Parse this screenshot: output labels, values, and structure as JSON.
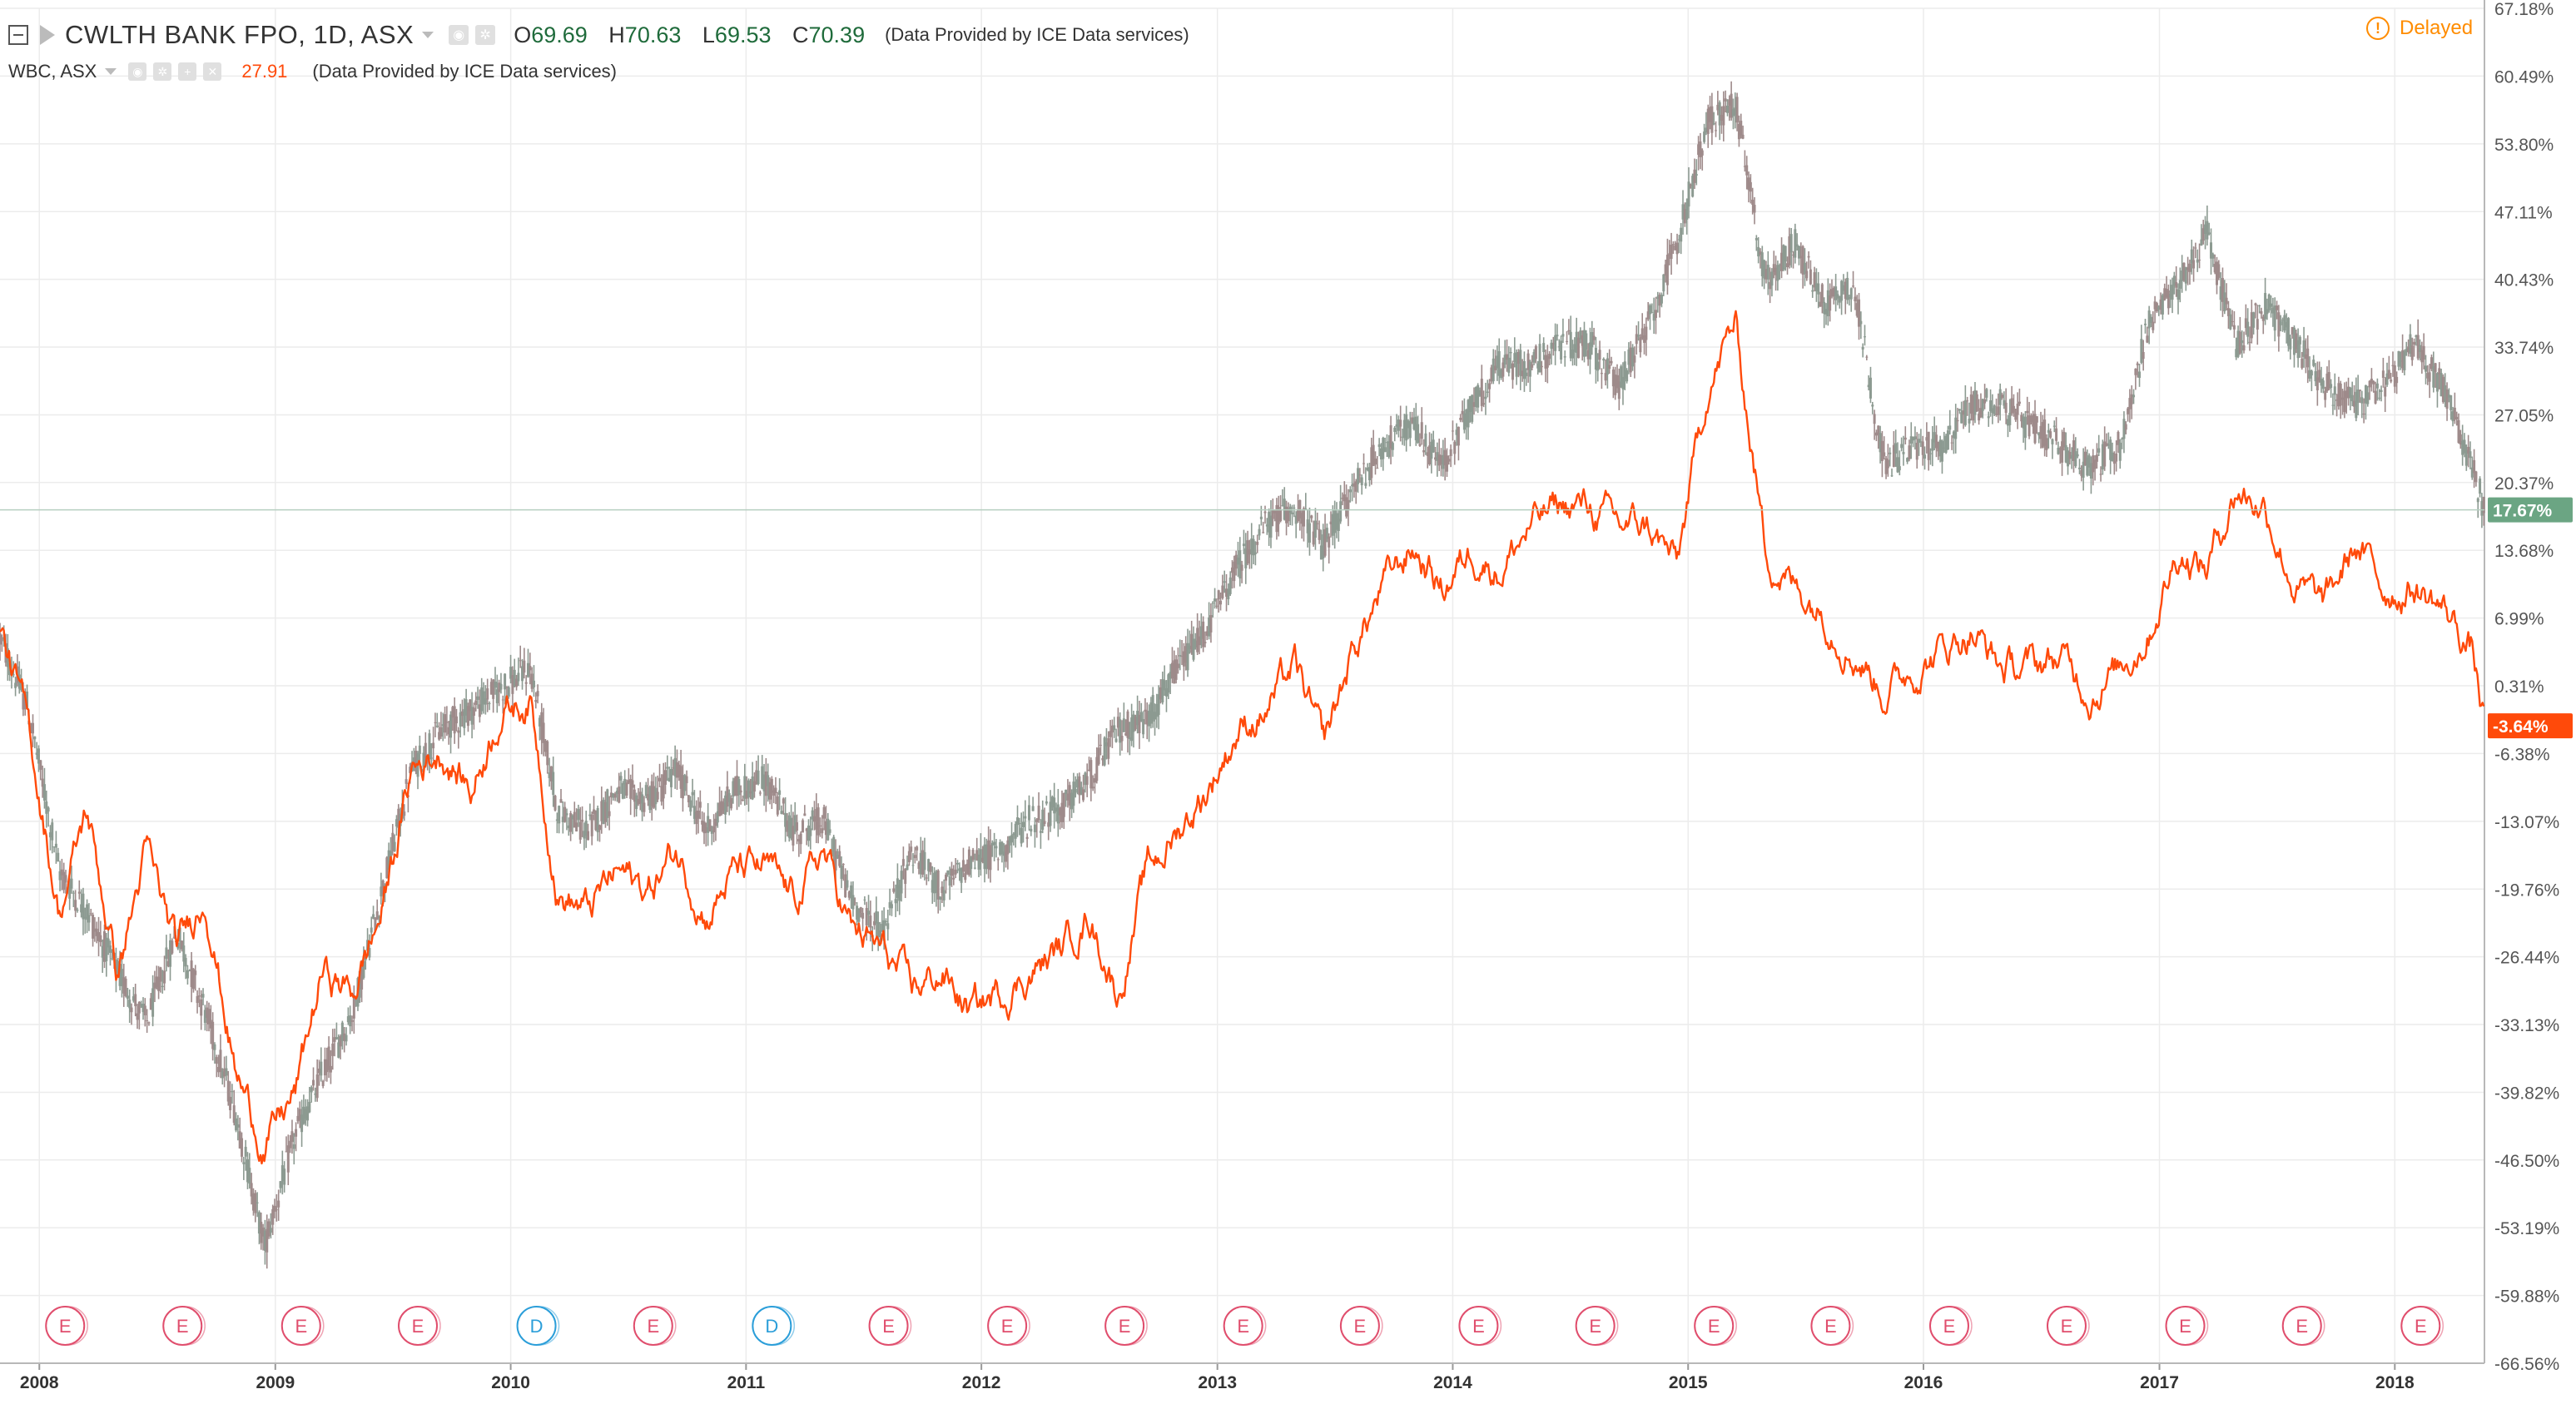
{
  "legend": {
    "main_symbol": "CWLTH BANK FPO, 1D, ASX",
    "o_label": "O",
    "o_value": "69.69",
    "h_label": "H",
    "h_value": "70.63",
    "l_label": "L",
    "l_value": "69.53",
    "c_label": "C",
    "c_value": "70.39",
    "provider": "(Data Provided by ICE Data services)",
    "compare_symbol": "WBC, ASX",
    "compare_value": "27.91",
    "compare_provider": "(Data Provided by ICE Data services)"
  },
  "status": {
    "delayed_label": "Delayed"
  },
  "colors": {
    "cba_up": "#8c9a91",
    "cba_down": "#9e8a8a",
    "wbc_line": "#ff4a0a",
    "cba_badge": "#6ba583",
    "wbc_badge": "#ff4a0a",
    "grid": "#ececec",
    "earnings_marker": "#e04e6d",
    "dividend_marker": "#2b9ed9"
  },
  "chart_data": {
    "type": "line",
    "title": "CWLTH BANK FPO, 1D, ASX",
    "xlabel": "",
    "ylabel": "",
    "y_scale": "percent",
    "ylim": [
      -66.56,
      67.18
    ],
    "y_ticks": [
      "67.18%",
      "60.49%",
      "53.80%",
      "47.11%",
      "40.43%",
      "33.74%",
      "27.05%",
      "20.37%",
      "13.68%",
      "6.99%",
      "0.31%",
      "-6.38%",
      "-13.07%",
      "-19.76%",
      "-26.44%",
      "-33.13%",
      "-39.82%",
      "-46.50%",
      "-53.19%",
      "-59.88%",
      "-66.56%"
    ],
    "y_tick_values": [
      67.18,
      60.49,
      53.8,
      47.11,
      40.43,
      33.74,
      27.05,
      20.37,
      13.68,
      6.99,
      0.31,
      -6.38,
      -13.07,
      -19.76,
      -26.44,
      -33.13,
      -39.82,
      -46.5,
      -53.19,
      -59.88,
      -66.56
    ],
    "x_ticks": [
      "2008",
      "2009",
      "2010",
      "2011",
      "2012",
      "2013",
      "2014",
      "2015",
      "2016",
      "2017",
      "2018"
    ],
    "x_tick_dates": [
      "2008-01-01",
      "2009-01-01",
      "2010-01-01",
      "2011-01-01",
      "2012-01-01",
      "2013-01-01",
      "2014-01-01",
      "2015-01-01",
      "2016-01-01",
      "2017-01-01",
      "2018-01-01"
    ],
    "xlim": [
      "2007-11-01",
      "2018-05-20"
    ],
    "grid": true,
    "series": [
      {
        "name": "CWLTH BANK FPO, 1D, ASX",
        "style": "candles",
        "last_label": "17.67%",
        "x": [
          "2007-11-01",
          "2007-12-15",
          "2008-02-01",
          "2008-03-15",
          "2008-05-01",
          "2008-06-15",
          "2008-08-01",
          "2008-09-15",
          "2008-11-01",
          "2008-12-15",
          "2009-02-01",
          "2009-03-15",
          "2009-05-01",
          "2009-06-15",
          "2009-08-01",
          "2009-09-15",
          "2009-11-01",
          "2009-12-15",
          "2010-02-01",
          "2010-03-15",
          "2010-05-01",
          "2010-06-15",
          "2010-08-01",
          "2010-09-15",
          "2010-11-01",
          "2010-12-15",
          "2011-02-01",
          "2011-03-15",
          "2011-05-01",
          "2011-06-15",
          "2011-08-01",
          "2011-09-15",
          "2011-11-01",
          "2011-12-15",
          "2012-02-01",
          "2012-03-15",
          "2012-05-01",
          "2012-06-15",
          "2012-08-01",
          "2012-09-15",
          "2012-11-01",
          "2012-12-15",
          "2013-02-01",
          "2013-03-15",
          "2013-05-01",
          "2013-06-15",
          "2013-08-01",
          "2013-09-15",
          "2013-11-01",
          "2013-12-15",
          "2014-02-01",
          "2014-03-15",
          "2014-05-01",
          "2014-06-15",
          "2014-08-01",
          "2014-09-15",
          "2014-11-01",
          "2014-12-15",
          "2015-02-01",
          "2015-03-15",
          "2015-05-01",
          "2015-06-15",
          "2015-08-01",
          "2015-09-15",
          "2015-11-01",
          "2015-12-15",
          "2016-02-01",
          "2016-03-15",
          "2016-05-01",
          "2016-06-15",
          "2016-08-01",
          "2016-09-15",
          "2016-11-01",
          "2016-12-15",
          "2017-02-01",
          "2017-03-15",
          "2017-05-01",
          "2017-06-15",
          "2017-08-01",
          "2017-09-15",
          "2017-11-01",
          "2017-12-15",
          "2018-02-01",
          "2018-03-15",
          "2018-05-01",
          "2018-05-20"
        ],
        "values": [
          5,
          -2,
          -18,
          -22,
          -28,
          -33,
          -24,
          -32,
          -42,
          -55,
          -44,
          -38,
          -32,
          -20,
          -8,
          -4,
          -2,
          0,
          2,
          -12,
          -14,
          -10,
          -11,
          -8,
          -14,
          -10,
          -9,
          -14,
          -13,
          -21,
          -24,
          -16,
          -20,
          -17,
          -16,
          -13,
          -12,
          -9,
          -4,
          -3,
          2,
          6,
          12,
          16,
          18,
          14,
          20,
          24,
          26,
          22,
          28,
          32,
          32,
          34,
          34,
          30,
          36,
          44,
          56,
          58,
          40,
          44,
          38,
          40,
          22,
          24,
          24,
          28,
          28,
          26,
          24,
          22,
          24,
          36,
          40,
          45,
          34,
          38,
          34,
          30,
          28,
          30,
          34,
          30,
          22,
          17.67
        ]
      },
      {
        "name": "WBC, ASX",
        "style": "line",
        "last_label": "-3.64%",
        "x": [
          "2007-11-01",
          "2007-12-15",
          "2008-02-01",
          "2008-03-15",
          "2008-05-01",
          "2008-06-15",
          "2008-08-01",
          "2008-09-15",
          "2008-11-01",
          "2008-12-15",
          "2009-02-01",
          "2009-03-15",
          "2009-05-01",
          "2009-06-15",
          "2009-08-01",
          "2009-09-15",
          "2009-11-01",
          "2009-12-15",
          "2010-02-01",
          "2010-03-15",
          "2010-05-01",
          "2010-06-15",
          "2010-08-01",
          "2010-09-15",
          "2010-11-01",
          "2010-12-15",
          "2011-02-01",
          "2011-03-15",
          "2011-05-01",
          "2011-06-15",
          "2011-08-01",
          "2011-09-15",
          "2011-11-01",
          "2011-12-15",
          "2012-02-01",
          "2012-03-15",
          "2012-05-01",
          "2012-06-15",
          "2012-08-01",
          "2012-09-15",
          "2012-11-01",
          "2012-12-15",
          "2013-02-01",
          "2013-03-15",
          "2013-05-01",
          "2013-06-15",
          "2013-08-01",
          "2013-09-15",
          "2013-11-01",
          "2013-12-15",
          "2014-02-01",
          "2014-03-15",
          "2014-05-01",
          "2014-06-15",
          "2014-08-01",
          "2014-09-15",
          "2014-11-01",
          "2014-12-15",
          "2015-02-01",
          "2015-03-15",
          "2015-05-01",
          "2015-06-15",
          "2015-08-01",
          "2015-09-15",
          "2015-11-01",
          "2015-12-15",
          "2016-02-01",
          "2016-03-15",
          "2016-05-01",
          "2016-06-15",
          "2016-08-01",
          "2016-09-15",
          "2016-11-01",
          "2016-12-15",
          "2017-02-01",
          "2017-03-15",
          "2017-05-01",
          "2017-06-15",
          "2017-08-01",
          "2017-09-15",
          "2017-11-01",
          "2017-12-15",
          "2018-02-01",
          "2018-03-15",
          "2018-05-01",
          "2018-05-20"
        ],
        "values": [
          6,
          -4,
          -22,
          -12,
          -28,
          -16,
          -26,
          -20,
          -38,
          -45,
          -40,
          -28,
          -30,
          -22,
          -8,
          -6,
          -10,
          -2,
          -1,
          -20,
          -22,
          -18,
          -20,
          -16,
          -22,
          -18,
          -18,
          -21,
          -16,
          -24,
          -26,
          -30,
          -28,
          -32,
          -30,
          -28,
          -26,
          -22,
          -30,
          -18,
          -14,
          -10,
          -4,
          -2,
          2,
          -6,
          4,
          10,
          14,
          10,
          14,
          12,
          16,
          18,
          18,
          16,
          16,
          12,
          30,
          36,
          14,
          10,
          8,
          4,
          0,
          2,
          4,
          6,
          2,
          2,
          3,
          0,
          2,
          6,
          14,
          12,
          20,
          18,
          10,
          8,
          14,
          10,
          10,
          8,
          4,
          -3.64
        ]
      },
      {
        "name": "Events",
        "style": "markers",
        "x": [
          "2008-02-10",
          "2008-08-10",
          "2009-02-10",
          "2009-08-10",
          "2010-02-10",
          "2010-08-10",
          "2011-02-10",
          "2011-08-10",
          "2012-02-10",
          "2012-08-10",
          "2013-02-10",
          "2013-08-10",
          "2014-02-10",
          "2014-08-10",
          "2015-02-10",
          "2015-08-10",
          "2016-02-10",
          "2016-08-10",
          "2017-02-10",
          "2017-08-10",
          "2018-02-10"
        ],
        "labels": [
          "E",
          "E",
          "E",
          "E",
          "D",
          "E",
          "D",
          "E",
          "E",
          "E",
          "E",
          "E",
          "E",
          "E",
          "E",
          "E",
          "E",
          "E",
          "E",
          "E",
          "E"
        ]
      }
    ]
  }
}
